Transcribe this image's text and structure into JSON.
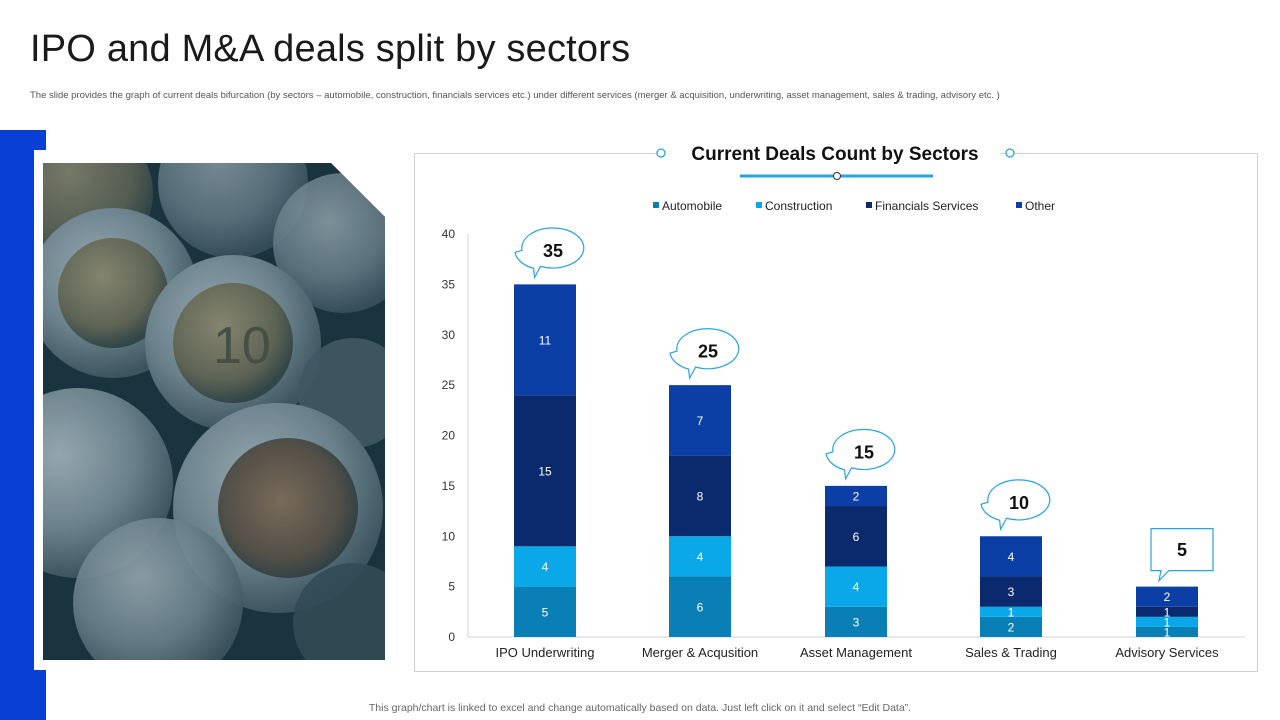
{
  "slide": {
    "title": "IPO and M&A deals split by sectors",
    "subtitle": "The slide provides the graph of current deals bifurcation (by sectors – automobile,  construction, financials services etc.) under different services (merger & acquisition, underwriting, asset management, sales & trading, advisory etc. )",
    "footnote": "This graph/chart is linked to excel and change automatically based on data. Just left click on it and select “Edit Data”."
  },
  "colors": {
    "accent": "#0a3fd6",
    "automobile": "#0a7fb5",
    "construction": "#0aa8e8",
    "financials": "#0b2a6e",
    "other": "#0b3fa6",
    "callout_border": "#29a3e0"
  },
  "chart_data": {
    "type": "bar",
    "stacked": true,
    "title": "Current Deals Count by Sectors",
    "categories": [
      "IPO Underwriting",
      "Merger & Acqusition",
      "Asset Management",
      "Sales & Trading",
      "Advisory Services"
    ],
    "series": [
      {
        "name": "Automobile",
        "values": [
          5,
          6,
          3,
          2,
          1
        ]
      },
      {
        "name": "Construction",
        "values": [
          4,
          4,
          4,
          1,
          1
        ]
      },
      {
        "name": "Financials Services",
        "values": [
          15,
          8,
          6,
          3,
          1
        ]
      },
      {
        "name": "Other",
        "values": [
          11,
          7,
          2,
          4,
          2
        ]
      }
    ],
    "totals": [
      35,
      25,
      15,
      10,
      5
    ],
    "ylim": [
      0,
      40
    ],
    "yticks": [
      0,
      5,
      10,
      15,
      20,
      25,
      30,
      35,
      40
    ],
    "legend_position": "top"
  }
}
